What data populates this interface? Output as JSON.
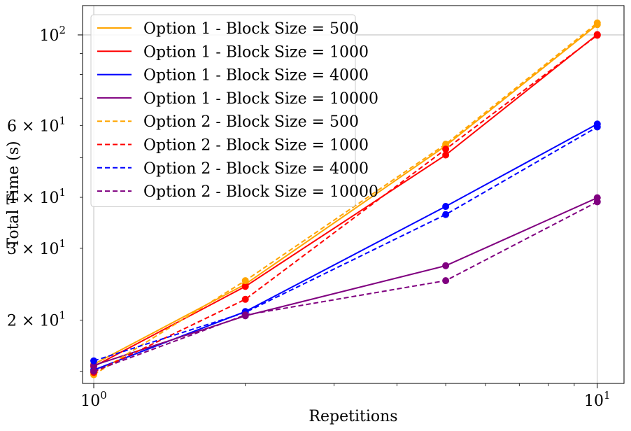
{
  "chart_data": {
    "type": "line",
    "xlabel": "Repetitions",
    "ylabel": "Total Time (s)",
    "xscale": "log",
    "yscale": "log",
    "xlim": [
      0.95,
      11.3
    ],
    "ylim": [
      14.0,
      118
    ],
    "grid": "major only",
    "legend_position": "top-left",
    "x": [
      1,
      2,
      5,
      10
    ],
    "x_ticks": [
      {
        "value": 1,
        "base": "10",
        "exp": "0"
      },
      {
        "value": 10,
        "base": "10",
        "exp": "1"
      }
    ],
    "y_ticks": [
      {
        "value": 20,
        "mant": "2 × 10",
        "exp": "1"
      },
      {
        "value": 30,
        "mant": "3 × 10",
        "exp": "1"
      },
      {
        "value": 40,
        "mant": "4 × 10",
        "exp": "1"
      },
      {
        "value": 60,
        "mant": "6 × 10",
        "exp": "1"
      },
      {
        "value": 100,
        "mant": "10",
        "exp": "2"
      }
    ],
    "series": [
      {
        "name": "Option 1 - Block Size = 500",
        "color": "#ffa500",
        "dash": "solid",
        "values": [
          15.6,
          24.5,
          53.5,
          106
        ]
      },
      {
        "name": "Option 1 - Block Size = 1000",
        "color": "#ff0000",
        "dash": "solid",
        "values": [
          15.4,
          24.2,
          50.8,
          100.2
        ]
      },
      {
        "name": "Option 1 - Block Size = 4000",
        "color": "#0000ff",
        "dash": "solid",
        "values": [
          15.1,
          21.0,
          38.0,
          60.5
        ]
      },
      {
        "name": "Option 1 - Block Size = 10000",
        "color": "#800080",
        "dash": "solid",
        "values": [
          15.5,
          20.5,
          27.2,
          39.9
        ]
      },
      {
        "name": "Option 2 - Block Size = 500",
        "color": "#ffa500",
        "dash": "dashed",
        "values": [
          14.7,
          25.0,
          54.0,
          107
        ]
      },
      {
        "name": "Option 2 - Block Size = 1000",
        "color": "#ff0000",
        "dash": "dashed",
        "values": [
          14.9,
          22.5,
          52.5,
          99.8
        ]
      },
      {
        "name": "Option 2 - Block Size = 4000",
        "color": "#0000ff",
        "dash": "dashed",
        "values": [
          15.9,
          20.9,
          36.3,
          59.5
        ]
      },
      {
        "name": "Option 2 - Block Size = 10000",
        "color": "#800080",
        "dash": "dashed",
        "values": [
          15.0,
          20.6,
          25.0,
          39.0
        ]
      }
    ]
  }
}
